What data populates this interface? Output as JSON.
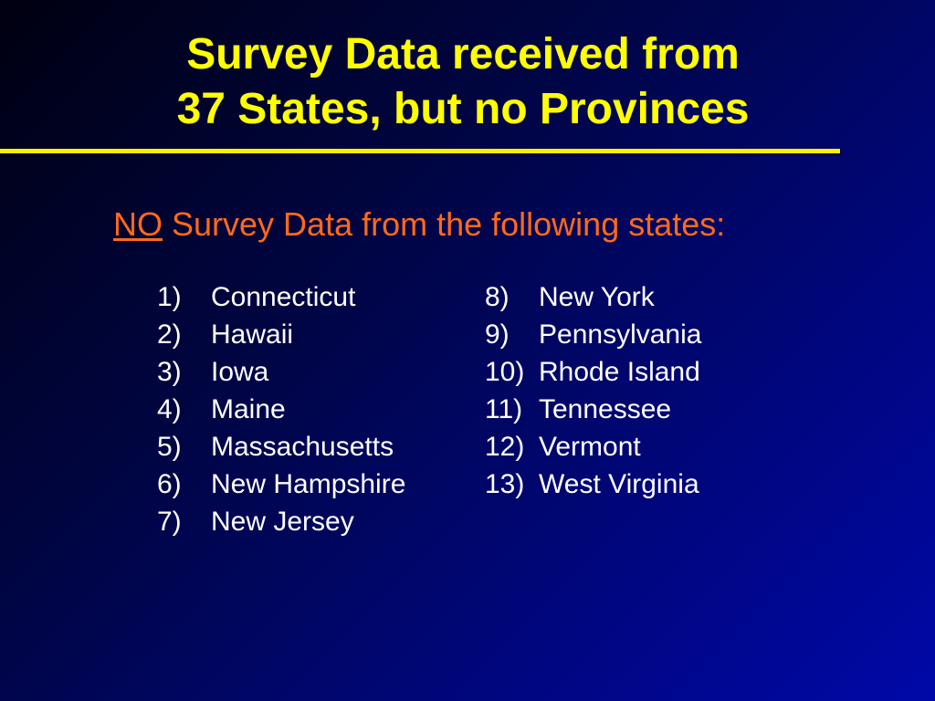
{
  "slide": {
    "title_line1": "Survey Data received from",
    "title_line2": "37 States, but no Provinces",
    "subtitle_emphasis": "NO",
    "subtitle_rest": " Survey Data from the following states:",
    "colors": {
      "title": "#ffff00",
      "subtitle": "#ff6a1a",
      "list_text": "#ffffff",
      "background_dark": "#000010",
      "background_light": "#0008a8"
    },
    "states_left": [
      {
        "num": "1)",
        "name": "Connecticut"
      },
      {
        "num": "2)",
        "name": "Hawaii"
      },
      {
        "num": "3)",
        "name": "Iowa"
      },
      {
        "num": "4)",
        "name": "Maine"
      },
      {
        "num": "5)",
        "name": "Massachusetts"
      },
      {
        "num": "6)",
        "name": "New Hampshire"
      },
      {
        "num": "7)",
        "name": "New Jersey"
      }
    ],
    "states_right": [
      {
        "num": "8)",
        "name": "New York"
      },
      {
        "num": "9)",
        "name": "Pennsylvania"
      },
      {
        "num": "10)",
        "name": "Rhode Island"
      },
      {
        "num": "11)",
        "name": "Tennessee"
      },
      {
        "num": "12)",
        "name": "Vermont"
      },
      {
        "num": "13)",
        "name": "West Virginia"
      }
    ]
  }
}
